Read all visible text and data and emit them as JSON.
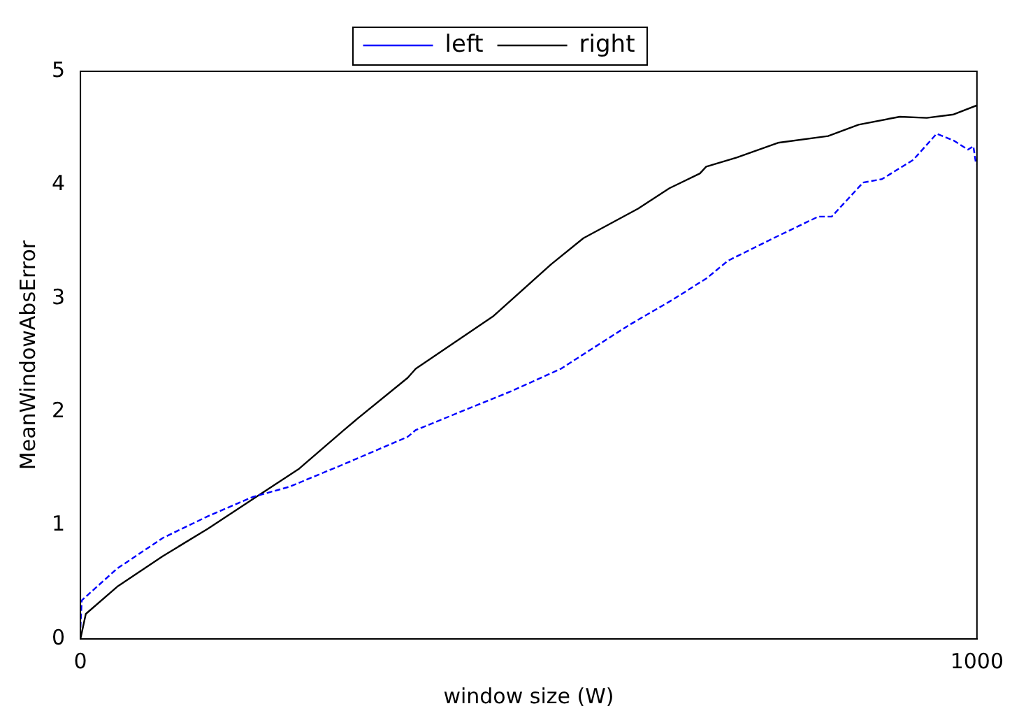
{
  "chart_data": {
    "type": "line",
    "xlabel": "window size (W)",
    "ylabel": "MeanWindowAbsError",
    "xlim": [
      0,
      1000
    ],
    "xticks": [
      0,
      1000
    ],
    "ylim": [
      0,
      5
    ],
    "yticks": [
      0,
      1,
      2,
      3,
      4,
      5
    ],
    "grid": false,
    "legend": "top",
    "marker": "none",
    "series": [
      {
        "name": "left",
        "color": "#0000ff",
        "line_style": "dashed",
        "x": [
          0,
          1.5,
          41,
          92,
          142,
          192,
          233,
          294,
          365,
          374,
          480,
          536,
          611,
          661,
          699,
          722,
          773,
          823,
          838,
          873,
          894,
          929,
          955,
          974,
          990,
          996,
          999
        ],
        "values": [
          0.1,
          0.34,
          0.62,
          0.89,
          1.08,
          1.25,
          1.34,
          1.54,
          1.78,
          1.84,
          2.18,
          2.38,
          2.76,
          2.99,
          3.18,
          3.33,
          3.53,
          3.72,
          3.72,
          4.02,
          4.05,
          4.22,
          4.45,
          4.39,
          4.31,
          4.34,
          4.18
        ]
      },
      {
        "name": "right",
        "color": "#000000",
        "line_style": "solid",
        "x": [
          0,
          6,
          41,
          92,
          142,
          192,
          244,
          294,
          309,
          365,
          374,
          460,
          525,
          561,
          622,
          657,
          691,
          698,
          732,
          778,
          834,
          868,
          914,
          944,
          974,
          1000
        ],
        "values": [
          0,
          0.22,
          0.46,
          0.73,
          0.97,
          1.23,
          1.5,
          1.84,
          1.94,
          2.3,
          2.38,
          2.84,
          3.3,
          3.53,
          3.79,
          3.97,
          4.1,
          4.16,
          4.24,
          4.37,
          4.43,
          4.53,
          4.6,
          4.59,
          4.62,
          4.7
        ]
      }
    ]
  }
}
